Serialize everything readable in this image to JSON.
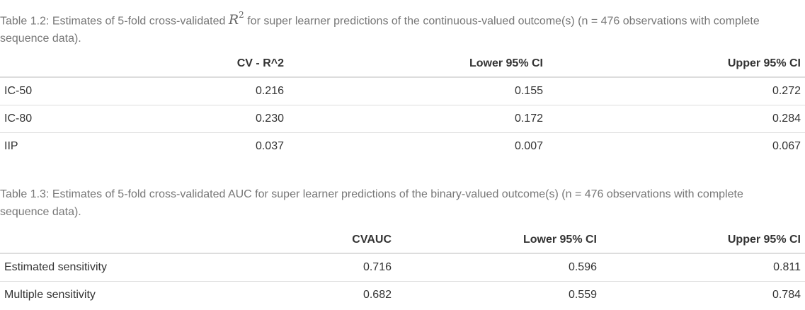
{
  "table1": {
    "caption_before": "Table 1.2: Estimates of 5-fold cross-validated ",
    "caption_symbol": "R",
    "caption_exponent": "2",
    "caption_after": " for super learner predictions of the continuous-valued outcome(s) (n = 476 observations with complete sequence data).",
    "headers": [
      "",
      "CV - R^2",
      "Lower 95% CI",
      "Upper 95% CI"
    ],
    "rows": [
      [
        "IC-50",
        "0.216",
        "0.155",
        "0.272"
      ],
      [
        "IC-80",
        "0.230",
        "0.172",
        "0.284"
      ],
      [
        "IIP",
        "0.037",
        "0.007",
        "0.067"
      ]
    ]
  },
  "table2": {
    "caption": "Table 1.3: Estimates of 5-fold cross-validated AUC for super learner predictions of the binary-valued outcome(s) (n = 476 observations with complete sequence data).",
    "headers": [
      "",
      "CVAUC",
      "Lower 95% CI",
      "Upper 95% CI"
    ],
    "rows": [
      [
        "Estimated sensitivity",
        "0.716",
        "0.596",
        "0.811"
      ],
      [
        "Multiple sensitivity",
        "0.682",
        "0.559",
        "0.784"
      ]
    ]
  }
}
